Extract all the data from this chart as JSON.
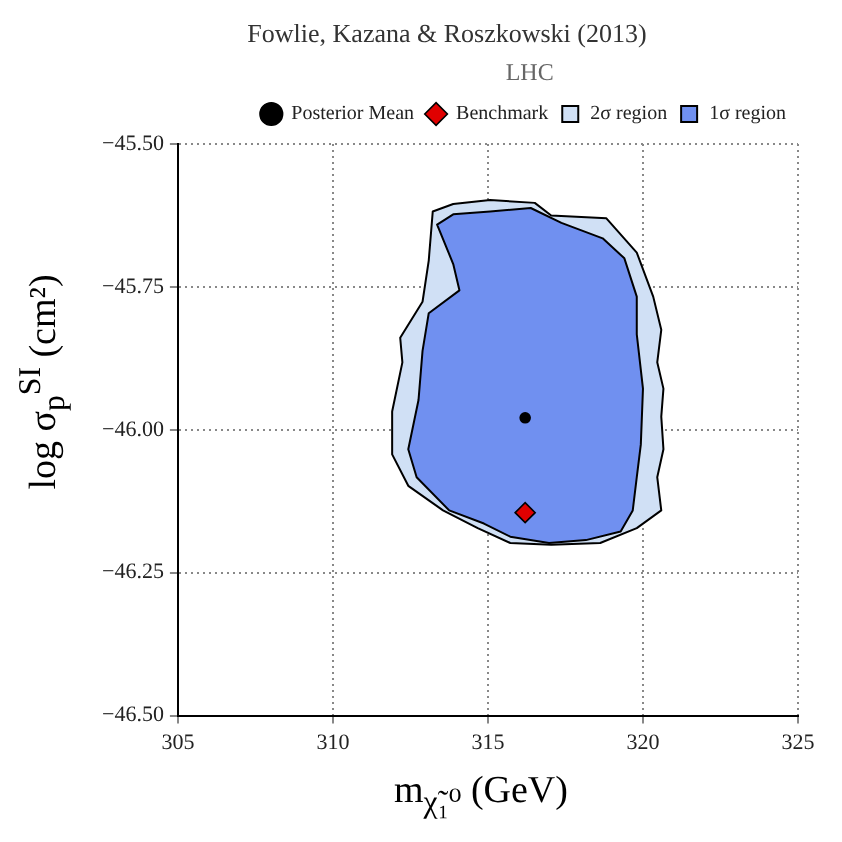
{
  "chart_data": {
    "type": "scatter",
    "title": "Fowlie, Kazana & Roszkowski (2013)",
    "xlabel": "m$_{χ̃₁⁰}$ (GeV)",
    "ylabel": "log σ$_{p}$$^{SI}$ (cm²)",
    "legend_title": "LHC",
    "legend": "top right",
    "grid": true,
    "xlim": [
      305,
      325
    ],
    "xticks": [
      {
        "value": 305,
        "label": "305"
      },
      {
        "value": 310,
        "label": "310"
      },
      {
        "value": 315,
        "label": "315"
      },
      {
        "value": 320,
        "label": "320"
      },
      {
        "value": 325,
        "label": "325"
      }
    ],
    "ylim": [
      -46.5,
      -45.5
    ],
    "yticks": [
      {
        "value": -46.5,
        "label": "−46.50"
      },
      {
        "value": -46.25,
        "label": "−46.25"
      },
      {
        "value": -46,
        "label": "−46.00"
      },
      {
        "value": -45.75,
        "label": "−45.75"
      },
      {
        "value": -45.5,
        "label": "−45.50"
      }
    ],
    "series": [
      {
        "name": "Posterior Mean",
        "marker": "circle",
        "color": "#000000",
        "x": [
          316.2
        ],
        "values": [
          -45.979
        ]
      },
      {
        "name": "Benchmark",
        "marker": "diamond",
        "color": "#e00000",
        "x": [
          316.2
        ],
        "values": [
          -46.145
        ]
      },
      {
        "name": "2σ region",
        "type": "area",
        "color": "#d0e0f5",
        "x": [
          313.22,
          313.88,
          315.07,
          316.51,
          317.04,
          318.82,
          319.8,
          320.33,
          320.59,
          320.46,
          320.66,
          320.59,
          320.66,
          320.46,
          320.59,
          319.8,
          318.62,
          317.04,
          315.72,
          314.67,
          313.55,
          312.43,
          311.91,
          311.91,
          312.24,
          312.17,
          312.89,
          313.09
        ],
        "values": [
          -45.618,
          -45.605,
          -45.598,
          -45.603,
          -45.625,
          -45.63,
          -45.69,
          -45.767,
          -45.825,
          -45.882,
          -45.928,
          -45.977,
          -46.034,
          -46.083,
          -46.141,
          -46.172,
          -46.198,
          -46.201,
          -46.198,
          -46.172,
          -46.141,
          -46.098,
          -46.043,
          -45.968,
          -45.882,
          -45.839,
          -45.776,
          -45.704
        ]
      },
      {
        "name": "1σ region",
        "type": "area",
        "color": "#7090f0",
        "x": [
          313.88,
          315.07,
          316.38,
          317.37,
          318.7,
          319.4,
          319.8,
          319.8,
          320,
          319.93,
          319.8,
          319.67,
          319.28,
          318.16,
          316.97,
          315.72,
          314.87,
          313.75,
          312.7,
          312.43,
          312.76,
          312.89,
          313.09,
          314.08,
          313.88,
          313.36
        ],
        "values": [
          -45.623,
          -45.618,
          -45.612,
          -45.638,
          -45.665,
          -45.7,
          -45.767,
          -45.833,
          -45.928,
          -46.026,
          -46.083,
          -46.141,
          -46.178,
          -46.193,
          -46.198,
          -46.187,
          -46.164,
          -46.141,
          -46.083,
          -46.034,
          -45.948,
          -45.862,
          -45.796,
          -45.756,
          -45.71,
          -45.641
        ]
      }
    ]
  }
}
